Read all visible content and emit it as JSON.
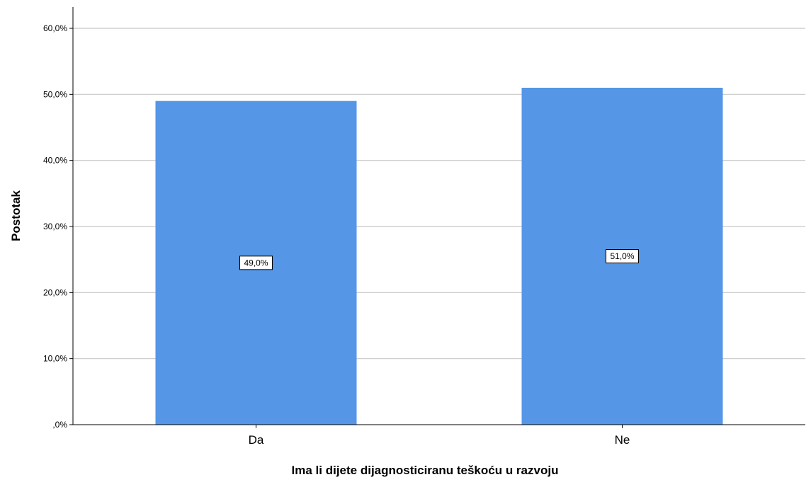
{
  "chart_data": {
    "type": "bar",
    "categories": [
      "Da",
      "Ne"
    ],
    "values": [
      49.0,
      51.0
    ],
    "data_labels": [
      "49,0%",
      "51,0%"
    ],
    "xlabel": "Ima li dijete dijagnosticiranu teškoću u razvoju",
    "ylabel": "Postotak",
    "ylim": [
      0,
      60
    ],
    "yticks": [
      0,
      10,
      20,
      30,
      40,
      50,
      60
    ],
    "ytick_labels": [
      ",0%",
      "10,0%",
      "20,0%",
      "30,0%",
      "40,0%",
      "50,0%",
      "60,0%"
    ],
    "grid": true,
    "legend": "none",
    "colors": {
      "bar": "#5596e6",
      "grid": "#c8c8c8",
      "axis": "#000000"
    }
  }
}
